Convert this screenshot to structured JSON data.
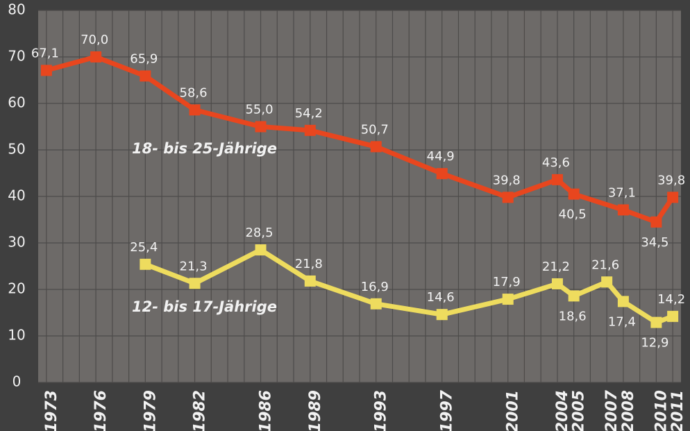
{
  "chart_data": {
    "type": "line",
    "annotations": [
      "18- bis 25-Jährige",
      "12- bis 17-Jährige"
    ],
    "series": [
      {
        "name": "18- bis 25-Jährige",
        "color": "#e8461e",
        "x": [
          1973,
          1976,
          1979,
          1982,
          1986,
          1989,
          1993,
          1997,
          2001,
          2004,
          2005,
          2008,
          2010,
          2011
        ],
        "values": [
          67.1,
          70.0,
          65.9,
          58.6,
          55.0,
          54.2,
          50.7,
          44.9,
          39.8,
          43.6,
          40.5,
          37.1,
          34.5,
          39.8
        ],
        "value_labels": [
          "67,1",
          "70,0",
          "65,9",
          "58,6",
          "55,0",
          "54,2",
          "50,7",
          "44,9",
          "39,8",
          "43,6",
          "40,5",
          "37,1",
          "34,5",
          "39,8"
        ]
      },
      {
        "name": "12- bis 17-Jährige",
        "color": "#eedc5e",
        "x": [
          1979,
          1982,
          1986,
          1989,
          1993,
          1997,
          2001,
          2004,
          2005,
          2007,
          2008,
          2010,
          2011
        ],
        "values": [
          25.4,
          21.3,
          28.5,
          21.8,
          16.9,
          14.6,
          17.9,
          21.2,
          18.6,
          21.6,
          17.4,
          12.9,
          14.2
        ],
        "value_labels": [
          "25,4",
          "21,3",
          "28,5",
          "21,8",
          "16,9",
          "14,6",
          "17,9",
          "21,2",
          "18,6",
          "21,6",
          "17,4",
          "12,9",
          "14,2"
        ]
      }
    ],
    "xlim": [
      1972.5,
      2011.5
    ],
    "xticks": [
      1973,
      1976,
      1979,
      1982,
      1986,
      1989,
      1993,
      1997,
      2001,
      2004,
      2005,
      2007,
      2008,
      2010,
      2011
    ],
    "ylim": [
      0,
      80
    ],
    "yticks": [
      0,
      10,
      20,
      30,
      40,
      50,
      60,
      70,
      80
    ],
    "grid": true
  }
}
